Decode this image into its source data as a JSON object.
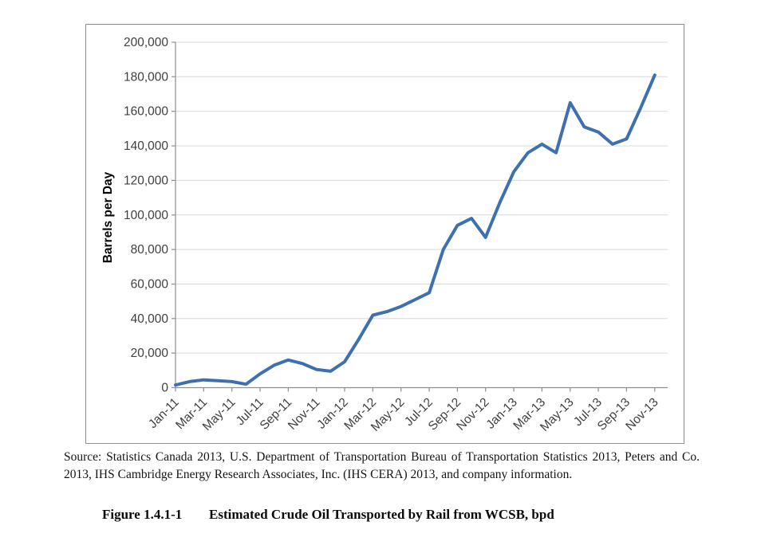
{
  "figure": {
    "source_lines": [
      "Source: Statistics Canada 2013, U.S. Department of Transportation Bureau of Transportation Statistics 2013, Peters and Co.",
      "2013, IHS Cambridge Energy Research Associates, Inc. (IHS CERA) 2013, and company information."
    ],
    "caption_label": "Figure 1.4.1-1",
    "caption_title": "Estimated Crude Oil Transported by Rail from WCSB, bpd"
  },
  "chart_data": {
    "type": "line",
    "title": "",
    "xlabel": "",
    "ylabel": "Barrels per Day",
    "ylim": [
      0,
      200000
    ],
    "ytick_step": 20000,
    "ytick_labels": [
      "0",
      "20,000",
      "40,000",
      "60,000",
      "80,000",
      "100,000",
      "120,000",
      "140,000",
      "160,000",
      "180,000",
      "200,000"
    ],
    "x_label_every": 2,
    "grid": "horizontal",
    "legend": "none",
    "series_name": "Estimated crude oil transported by rail from WCSB (bpd)",
    "series_color": "#3E70B0",
    "colors": {
      "grid": "#D9D9D9",
      "axis": "#8E8E8E",
      "label": "#3F3F3F",
      "ylabel": "#000000"
    },
    "x": [
      "Jan-11",
      "Feb-11",
      "Mar-11",
      "Apr-11",
      "May-11",
      "Jun-11",
      "Jul-11",
      "Aug-11",
      "Sep-11",
      "Oct-11",
      "Nov-11",
      "Dec-11",
      "Jan-12",
      "Feb-12",
      "Mar-12",
      "Apr-12",
      "May-12",
      "Jun-12",
      "Jul-12",
      "Aug-12",
      "Sep-12",
      "Oct-12",
      "Nov-12",
      "Dec-12",
      "Jan-13",
      "Feb-13",
      "Mar-13",
      "Apr-13",
      "May-13",
      "Jun-13",
      "Jul-13",
      "Aug-13",
      "Sep-13",
      "Oct-13",
      "Nov-13"
    ],
    "values": [
      1500,
      3500,
      4500,
      4000,
      3500,
      2000,
      8000,
      13000,
      16000,
      14000,
      10500,
      9500,
      15000,
      28000,
      42000,
      44000,
      47000,
      51000,
      55000,
      80000,
      94000,
      98000,
      87000,
      107000,
      125000,
      136000,
      141000,
      136000,
      165000,
      151000,
      148000,
      141000,
      144000,
      162000,
      181000
    ]
  }
}
